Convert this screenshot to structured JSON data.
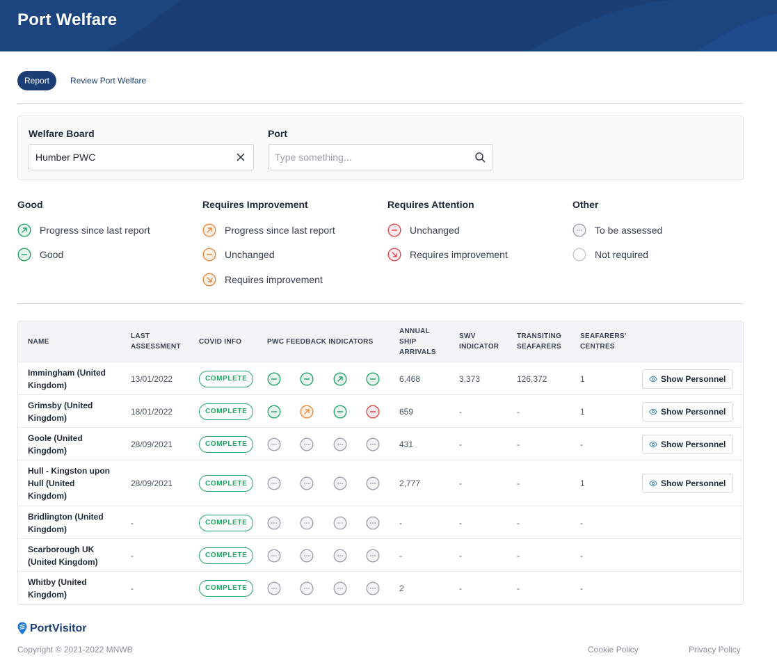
{
  "header": {
    "title": "Port Welfare"
  },
  "tabs": [
    {
      "label": "Report",
      "active": true
    },
    {
      "label": "Review Port Welfare",
      "active": false
    }
  ],
  "filters": {
    "welfare_board": {
      "label": "Welfare Board",
      "value": "Humber PWC"
    },
    "port": {
      "label": "Port",
      "placeholder": "Type something..."
    }
  },
  "legend": {
    "good": {
      "title": "Good",
      "items": [
        {
          "label": "Progress since last report",
          "icon": "arrow-up-right-icon",
          "color": "#22a565"
        },
        {
          "label": "Good",
          "icon": "minus-icon",
          "color": "#22a565"
        }
      ]
    },
    "requires_improvement": {
      "title": "Requires Improvement",
      "items": [
        {
          "label": "Progress since last report",
          "icon": "arrow-up-right-icon",
          "color": "#e8883a"
        },
        {
          "label": "Unchanged",
          "icon": "minus-icon",
          "color": "#e8883a"
        },
        {
          "label": "Requires improvement",
          "icon": "arrow-down-right-icon",
          "color": "#e8883a"
        }
      ]
    },
    "requires_attention": {
      "title": "Requires Attention",
      "items": [
        {
          "label": "Unchanged",
          "icon": "minus-icon",
          "color": "#e0474c"
        },
        {
          "label": "Requires improvement",
          "icon": "arrow-down-right-icon",
          "color": "#e0474c"
        }
      ]
    },
    "other": {
      "title": "Other",
      "items": [
        {
          "label": "To be assessed",
          "icon": "ellipsis-icon",
          "color": "#9ca3af"
        },
        {
          "label": "Not required",
          "icon": "empty-circle-icon",
          "color": "#c4c8ce"
        }
      ]
    }
  },
  "table": {
    "headers": {
      "name": "NAME",
      "last_assessment": [
        "LAST",
        "ASSESSMENT"
      ],
      "covid_info": "COVID INFO",
      "pwc": "PWC FEEDBACK INDICATORS",
      "arrivals": [
        "ANNUAL",
        "SHIP",
        "ARRIVALS"
      ],
      "swv": [
        "SWV",
        "INDICATOR"
      ],
      "transiting": [
        "TRANSITING",
        "SEAFARERS"
      ],
      "centres": [
        "SEAFARERS'",
        "CENTRES"
      ]
    },
    "show_personnel_label": "Show Personnel",
    "rows": [
      {
        "name": [
          "Immingham (United",
          "Kingdom)"
        ],
        "last_assessment": "13/01/2022",
        "covid": "COMPLETE",
        "indicators": [
          "good",
          "good",
          "good-progress",
          "good"
        ],
        "arrivals": "6,468",
        "swv": "3,373",
        "transiting": "126,372",
        "centres": "1",
        "show_personnel": true
      },
      {
        "name": [
          "Grimsby (United",
          "Kingdom)"
        ],
        "last_assessment": "18/01/2022",
        "covid": "COMPLETE",
        "indicators": [
          "good",
          "improvement-progress",
          "good",
          "attention-unchanged"
        ],
        "arrivals": "659",
        "swv": "-",
        "transiting": "-",
        "centres": "1",
        "show_personnel": true
      },
      {
        "name": [
          "Goole (United",
          "Kingdom)"
        ],
        "last_assessment": "28/09/2021",
        "covid": "COMPLETE",
        "indicators": [
          "tba",
          "tba",
          "tba",
          "tba"
        ],
        "arrivals": "431",
        "swv": "-",
        "transiting": "-",
        "centres": "-",
        "show_personnel": true
      },
      {
        "name": [
          "Hull - Kingston upon",
          "Hull (United",
          "Kingdom)"
        ],
        "last_assessment": "28/09/2021",
        "covid": "COMPLETE",
        "indicators": [
          "tba",
          "tba",
          "tba",
          "tba"
        ],
        "arrivals": "2,777",
        "swv": "-",
        "transiting": "-",
        "centres": "1",
        "show_personnel": true
      },
      {
        "name": [
          "Bridlington (United",
          "Kingdom)"
        ],
        "last_assessment": "-",
        "covid": "COMPLETE",
        "indicators": [
          "tba",
          "tba",
          "tba",
          "tba"
        ],
        "arrivals": "-",
        "swv": "-",
        "transiting": "-",
        "centres": "-",
        "show_personnel": false
      },
      {
        "name": [
          "Scarborough UK",
          "(United Kingdom)"
        ],
        "last_assessment": "-",
        "covid": "COMPLETE",
        "indicators": [
          "tba",
          "tba",
          "tba",
          "tba"
        ],
        "arrivals": "-",
        "swv": "-",
        "transiting": "-",
        "centres": "-",
        "show_personnel": false
      },
      {
        "name": [
          "Whitby (United",
          "Kingdom)"
        ],
        "last_assessment": "-",
        "covid": "COMPLETE",
        "indicators": [
          "tba",
          "tba",
          "tba",
          "tba"
        ],
        "arrivals": "2",
        "swv": "-",
        "transiting": "-",
        "centres": "-",
        "show_personnel": false
      }
    ]
  },
  "footer": {
    "brand": "PortVisitor",
    "copyright": "Copyright © 2021-2022 MNWB",
    "cookie_policy": "Cookie Policy",
    "privacy_policy": "Privacy Policy"
  },
  "colors": {
    "brand": "#1b3f74",
    "good": "#22a565",
    "improvement": "#e8883a",
    "attention": "#e0474c",
    "neutral": "#9ca3af"
  }
}
